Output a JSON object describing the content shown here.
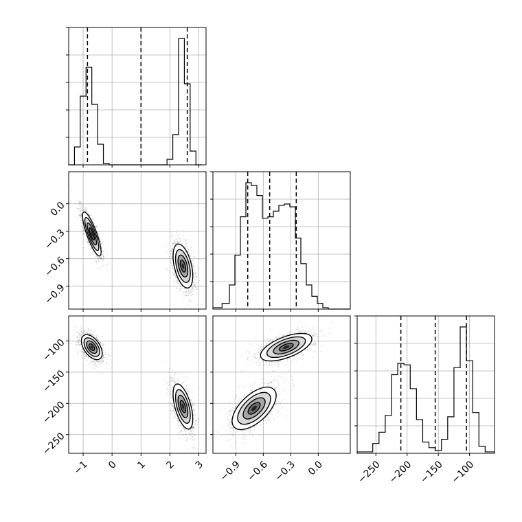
{
  "chart_data": {
    "type": "corner",
    "params": [
      {
        "id": "p1",
        "range": [
          -1.5,
          3.25
        ],
        "ticks": [
          -1,
          0,
          1,
          2,
          3
        ],
        "tick_labels": [
          "−1",
          "0",
          "1",
          "2",
          "3"
        ],
        "quantiles": [
          -0.85,
          1.0,
          2.6
        ],
        "hist": {
          "edges": [
            -1.5,
            -1.3,
            -1.1,
            -0.9,
            -0.7,
            -0.5,
            -0.3,
            -0.1,
            0.1,
            1.9,
            2.1,
            2.3,
            2.5,
            2.7,
            2.9,
            3.1
          ],
          "counts": [
            0,
            0.13,
            0.5,
            0.71,
            0.44,
            0.15,
            0.01,
            0,
            0,
            0.04,
            0.22,
            0.92,
            0.59,
            0.1,
            0
          ]
        }
      },
      {
        "id": "p2",
        "range": [
          -1.15,
          0.35
        ],
        "ticks": [
          -0.9,
          -0.6,
          -0.3,
          0.0
        ],
        "tick_labels": [
          "−0.9",
          "−0.6",
          "−0.3",
          "0.0"
        ],
        "quantiles": [
          -0.77,
          -0.53,
          -0.24
        ],
        "hist": {
          "edges": [
            -1.15,
            -1.05,
            -0.97,
            -0.91,
            -0.85,
            -0.79,
            -0.73,
            -0.67,
            -0.61,
            -0.55,
            -0.49,
            -0.43,
            -0.37,
            -0.31,
            -0.25,
            -0.19,
            -0.13,
            -0.07,
            -0.01,
            0.05,
            0.11,
            0.35
          ],
          "counts": [
            0.01,
            0.04,
            0.17,
            0.38,
            0.65,
            0.89,
            0.87,
            0.8,
            0.64,
            0.65,
            0.69,
            0.73,
            0.74,
            0.72,
            0.5,
            0.32,
            0.17,
            0.09,
            0.04,
            0.01,
            0
          ]
        }
      },
      {
        "id": "p3",
        "range": [
          -280,
          -60
        ],
        "ticks": [
          -250,
          -200,
          -150,
          -100
        ],
        "tick_labels": [
          "−250",
          "−200",
          "−150",
          "−100"
        ],
        "quantiles": [
          -210,
          -155,
          -105
        ],
        "hist": {
          "edges": [
            -280,
            -255,
            -245,
            -235,
            -225,
            -215,
            -205,
            -195,
            -185,
            -175,
            -165,
            -155,
            -145,
            -135,
            -125,
            -115,
            -105,
            -95,
            -85,
            -75,
            -60
          ],
          "counts": [
            0.01,
            0.07,
            0.15,
            0.27,
            0.56,
            0.64,
            0.63,
            0.46,
            0.24,
            0.08,
            0.04,
            0.02,
            0.1,
            0.26,
            0.61,
            0.9,
            0.66,
            0.29,
            0.05,
            0.01
          ]
        }
      }
    ],
    "pairs": [
      {
        "x": "p1",
        "y": "p2",
        "y_ticks": [
          -0.9,
          -0.6,
          -0.3,
          0.0
        ],
        "y_tick_labels": [
          "−0.9",
          "−0.6",
          "−0.3",
          "0.0"
        ],
        "clusters": [
          {
            "center": [
              -0.7,
              -0.33
            ],
            "sd": [
              0.16,
              0.12
            ],
            "corr": -0.82,
            "n": 1400
          },
          {
            "center": [
              2.45,
              -0.68
            ],
            "sd": [
              0.17,
              0.12
            ],
            "corr": -0.45,
            "n": 1400
          }
        ]
      },
      {
        "x": "p1",
        "y": "p3",
        "y_ticks": [
          -250,
          -200,
          -150,
          -100
        ],
        "y_tick_labels": [
          "−250",
          "−200",
          "−150",
          "−100"
        ],
        "clusters": [
          {
            "center": [
              -0.7,
              -110
            ],
            "sd": [
              0.18,
              10
            ],
            "corr": -0.5,
            "n": 1400
          },
          {
            "center": [
              2.45,
              -205
            ],
            "sd": [
              0.17,
              18
            ],
            "corr": -0.55,
            "n": 1400
          }
        ]
      },
      {
        "x": "p2",
        "y": "p3",
        "y_ticks": [],
        "y_tick_labels": [],
        "clusters": [
          {
            "center": [
              -0.7,
              -208
            ],
            "sd": [
              0.12,
              17
            ],
            "corr": 0.6,
            "n": 1400
          },
          {
            "center": [
              -0.35,
              -110
            ],
            "sd": [
              0.14,
              11
            ],
            "corr": 0.6,
            "n": 1400
          }
        ]
      }
    ],
    "grid": true,
    "hist_style": "step",
    "quantile_lines": "dashed"
  }
}
